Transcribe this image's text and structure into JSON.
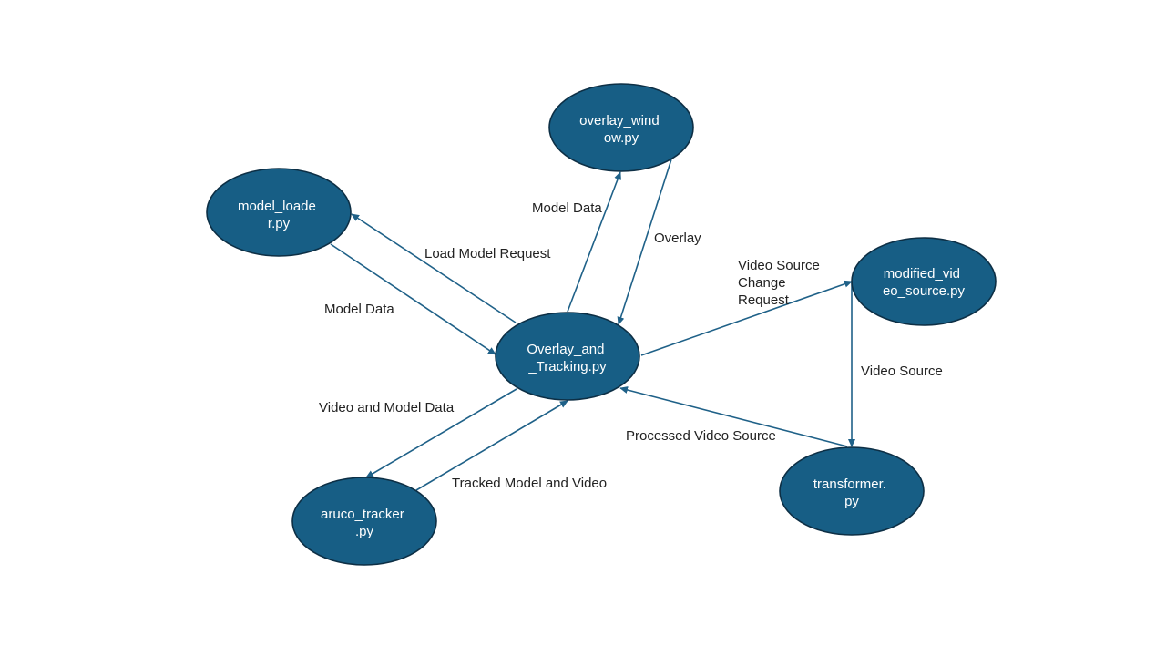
{
  "colors": {
    "node_fill": "#175e85",
    "node_stroke": "#0d2f45",
    "edge": "#1f6188",
    "background": "#ffffff"
  },
  "nodes": {
    "overlay_window": {
      "line1": "overlay_wind",
      "line2": "ow.py"
    },
    "model_loader": {
      "line1": "model_loade",
      "line2": "r.py"
    },
    "modified_video_source": {
      "line1": "modified_vid",
      "line2": "eo_source.py"
    },
    "overlay_and_tracking": {
      "line1": "Overlay_and",
      "line2": "_Tracking.py"
    },
    "aruco_tracker": {
      "line1": "aruco_tracker",
      "line2": ".py"
    },
    "transformer": {
      "line1": "transformer.",
      "line2": "py"
    }
  },
  "edges": {
    "load_model_request": "Load Model Request",
    "model_data_from_loader": "Model Data",
    "model_data_to_window": "Model Data",
    "overlay": "Overlay",
    "video_source_change_request": [
      "Video Source",
      "Change",
      "Request"
    ],
    "video_source": "Video Source",
    "processed_video_source": "Processed Video Source",
    "video_and_model_data": "Video and Model Data",
    "tracked_model_and_video": "Tracked Model and Video"
  }
}
